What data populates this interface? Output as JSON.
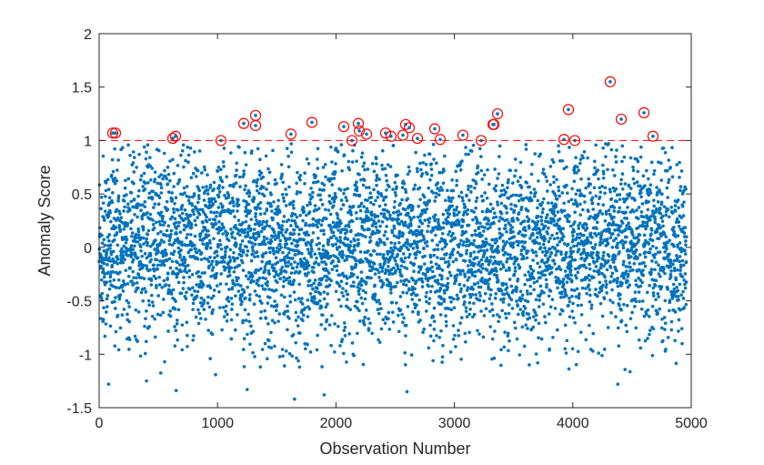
{
  "chart_data": {
    "type": "scatter",
    "title": "",
    "xlabel": "Observation Number",
    "ylabel": "Anomaly Score",
    "xlim": [
      0,
      5000
    ],
    "ylim": [
      -1.5,
      2
    ],
    "xticks": [
      0,
      1000,
      2000,
      3000,
      4000,
      5000
    ],
    "xtick_labels": [
      "0",
      "1000",
      "2000",
      "3000",
      "4000",
      "5000"
    ],
    "yticks": [
      -1.5,
      -1,
      -0.5,
      0,
      0.5,
      1,
      1.5,
      2
    ],
    "ytick_labels": [
      "-1.5",
      "-1",
      "-0.5",
      "0",
      "0.5",
      "1",
      "1.5",
      "2"
    ],
    "grid": false,
    "legend": "none",
    "threshold": 1,
    "colors": {
      "points": "#0072BD",
      "threshold": "#FF0000",
      "anomaly_marker": "#FF0000"
    },
    "anomalies": [
      [
        115,
        1.07
      ],
      [
        138,
        1.07
      ],
      [
        622,
        1.02
      ],
      [
        645,
        1.04
      ],
      [
        1029,
        1.0
      ],
      [
        1221,
        1.16
      ],
      [
        1321,
        1.235
      ],
      [
        1321,
        1.14
      ],
      [
        1620,
        1.06
      ],
      [
        1797,
        1.17
      ],
      [
        2066,
        1.13
      ],
      [
        2135,
        1.0
      ],
      [
        2189,
        1.16
      ],
      [
        2197,
        1.09
      ],
      [
        2258,
        1.06
      ],
      [
        2419,
        1.07
      ],
      [
        2465,
        1.04
      ],
      [
        2565,
        1.05
      ],
      [
        2588,
        1.15
      ],
      [
        2619,
        1.12
      ],
      [
        2688,
        1.02
      ],
      [
        2834,
        1.11
      ],
      [
        2880,
        1.01
      ],
      [
        3072,
        1.05
      ],
      [
        3226,
        1.0
      ],
      [
        3326,
        1.15
      ],
      [
        3334,
        1.15
      ],
      [
        3364,
        1.25
      ],
      [
        3925,
        1.01
      ],
      [
        3963,
        1.29
      ],
      [
        4017,
        1.0
      ],
      [
        4316,
        1.55
      ],
      [
        4409,
        1.2
      ],
      [
        4601,
        1.26
      ],
      [
        4677,
        1.04
      ]
    ],
    "low_points": [
      [
        1650,
        -1.42
      ],
      [
        1900,
        -1.38
      ],
      [
        2600,
        -1.35
      ],
      [
        1250,
        -1.33
      ],
      [
        650,
        -1.34
      ],
      [
        400,
        -1.25
      ],
      [
        4380,
        -1.28
      ],
      [
        80,
        -1.28
      ]
    ]
  }
}
